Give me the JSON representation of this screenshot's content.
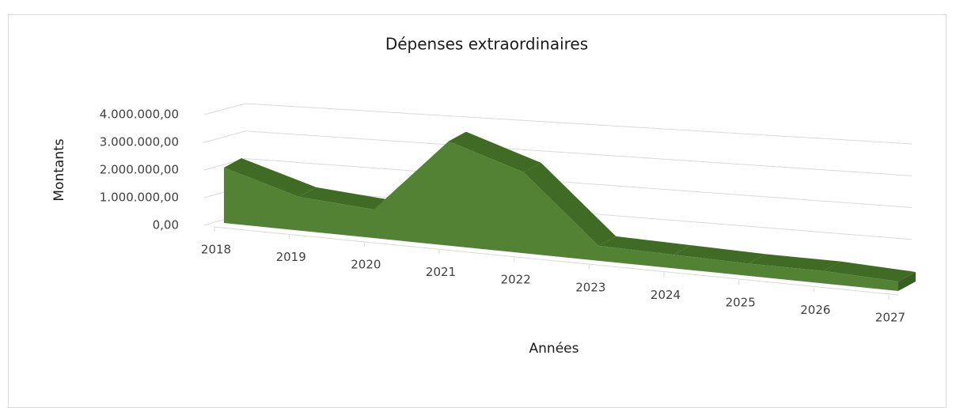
{
  "chart_data": {
    "type": "area3d",
    "title": "Dépenses extraordinaires",
    "x_label": "Années",
    "y_label": "Montants",
    "categories": [
      "2018",
      "2019",
      "2020",
      "2021",
      "2022",
      "2023",
      "2024",
      "2025",
      "2026",
      "2027"
    ],
    "values": [
      2000000,
      1200000,
      1000000,
      3600000,
      2750000,
      500000,
      450000,
      400000,
      400000,
      300000
    ],
    "color": "#548235",
    "ylim": [
      0,
      4000000
    ],
    "yticks": [
      {
        "value": 0,
        "label": "0,00"
      },
      {
        "value": 1000000,
        "label": "1.000.000,00"
      },
      {
        "value": 2000000,
        "label": "2.000.000,00"
      },
      {
        "value": 3000000,
        "label": "3.000.000,00"
      },
      {
        "value": 4000000,
        "label": "4.000.000,00"
      }
    ],
    "grid": true
  }
}
